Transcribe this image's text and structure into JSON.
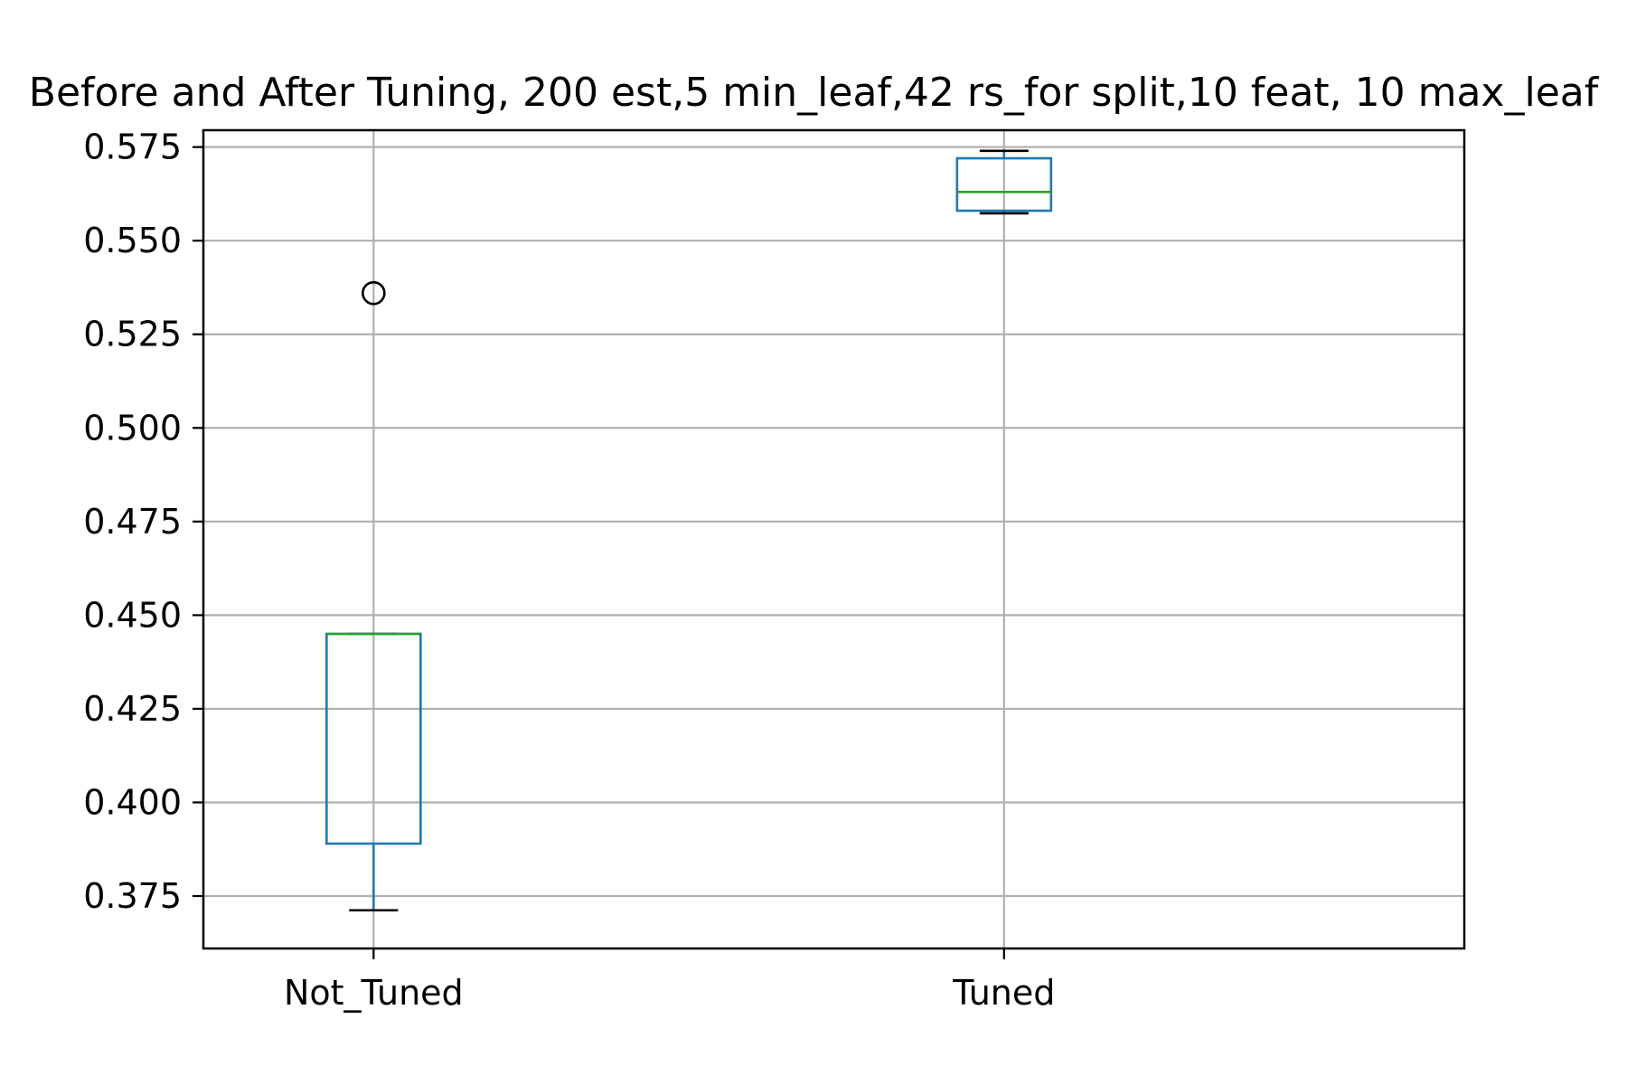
{
  "chart_data": {
    "type": "box",
    "title": "Before and After Tuning, 200 est,5 min_leaf,42 rs_for split,10 feat, 10 max_leaf",
    "xlabel": "",
    "ylabel": "",
    "ylim": [
      0.361,
      0.5795
    ],
    "y_ticks": [
      0.375,
      0.4,
      0.425,
      0.45,
      0.475,
      0.5,
      0.525,
      0.55,
      0.575
    ],
    "y_tick_labels": [
      "0.375",
      "0.400",
      "0.425",
      "0.450",
      "0.475",
      "0.500",
      "0.525",
      "0.550",
      "0.575"
    ],
    "grid": true,
    "categories": [
      "Not_Tuned",
      "Tuned"
    ],
    "boxes": [
      {
        "name": "Not_Tuned",
        "whisker_low": 0.3712,
        "q1": 0.389,
        "median": 0.445,
        "q3": 0.445,
        "whisker_high": 0.445,
        "outliers": [
          0.536
        ]
      },
      {
        "name": "Tuned",
        "whisker_low": 0.5573,
        "q1": 0.558,
        "median": 0.563,
        "q3": 0.572,
        "whisker_high": 0.574,
        "outliers": []
      }
    ]
  },
  "colors": {
    "box": "#1f77b4",
    "median": "#2ca02c",
    "whisker_cap": "#000000",
    "grid": "#b0b0b0",
    "axes": "#000000"
  }
}
